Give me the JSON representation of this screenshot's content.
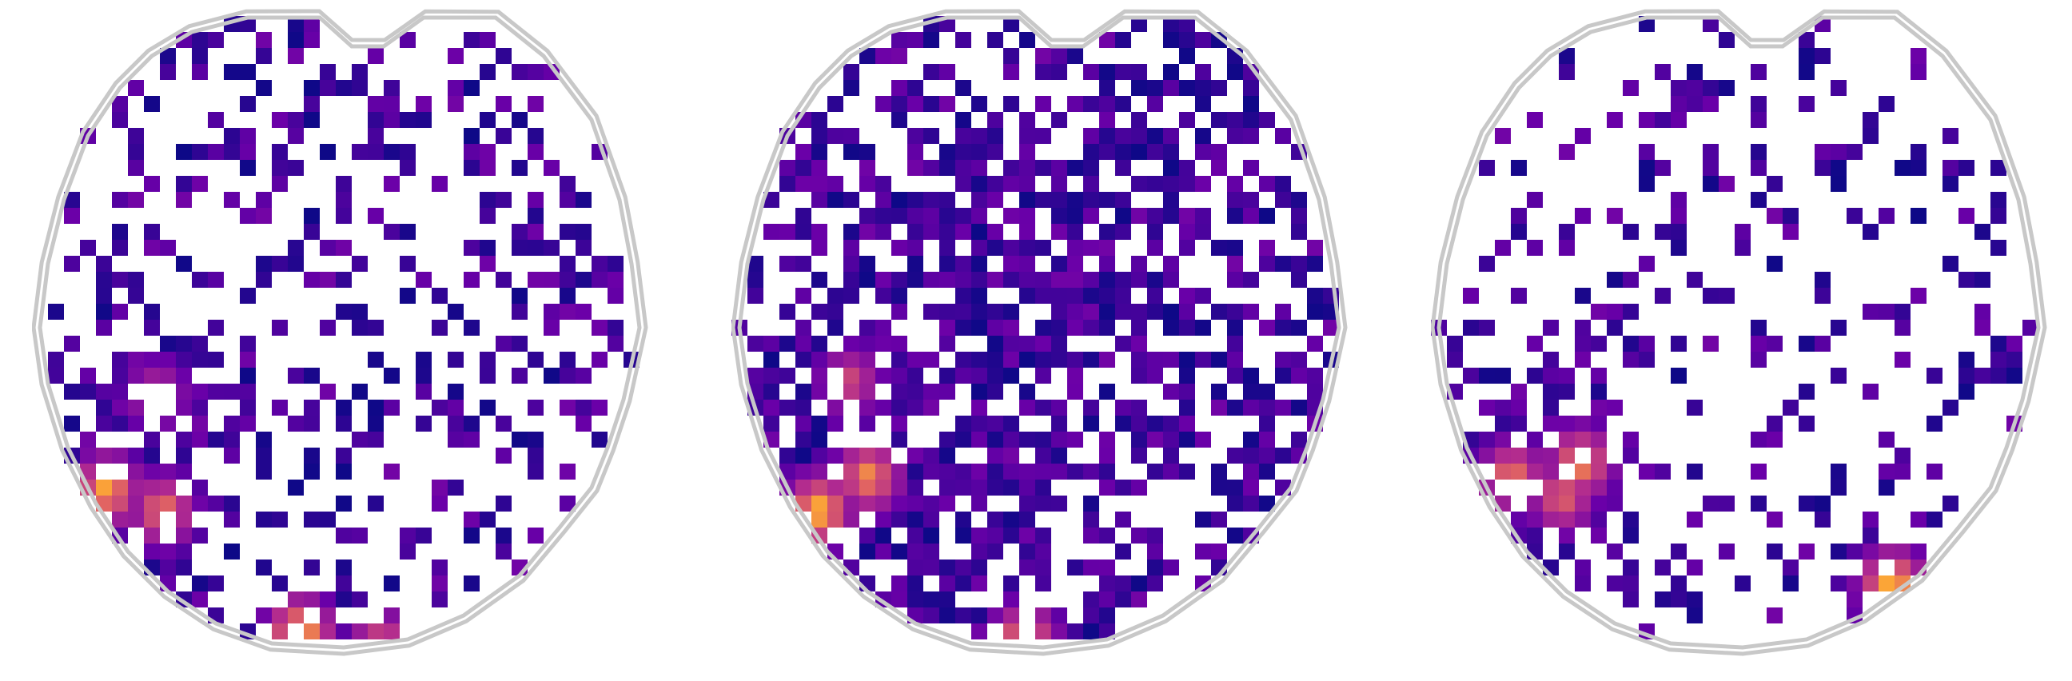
{
  "figure": {
    "panels": [
      {
        "id": "panel-1",
        "density": 0.33,
        "frontal_bias": 0.0,
        "posterior_left_hot": true,
        "hot_spots": [
          [
            0.12,
            0.72,
            0.9
          ],
          [
            0.21,
            0.75,
            0.8
          ],
          [
            0.2,
            0.58,
            0.6
          ],
          [
            0.43,
            0.93,
            0.95
          ],
          [
            0.56,
            0.95,
            0.75
          ]
        ],
        "seed": 11
      },
      {
        "id": "panel-2",
        "density": 0.55,
        "frontal_bias": 0.35,
        "posterior_left_hot": true,
        "hot_spots": [
          [
            0.14,
            0.75,
            0.95
          ],
          [
            0.22,
            0.7,
            0.85
          ],
          [
            0.19,
            0.56,
            0.65
          ],
          [
            0.47,
            0.94,
            0.85
          ],
          [
            0.49,
            0.98,
            1.0
          ]
        ],
        "seed": 23
      },
      {
        "id": "panel-3",
        "density": 0.22,
        "frontal_bias": 0.0,
        "posterior_left_hot": true,
        "hot_spots": [
          [
            0.13,
            0.7,
            0.8
          ],
          [
            0.21,
            0.73,
            0.75
          ],
          [
            0.24,
            0.68,
            0.85
          ],
          [
            0.74,
            0.86,
            0.95
          ],
          [
            0.76,
            0.92,
            0.9
          ]
        ],
        "seed": 37
      }
    ],
    "colormap": "plasma",
    "outline_color": "#c8c8c8"
  }
}
